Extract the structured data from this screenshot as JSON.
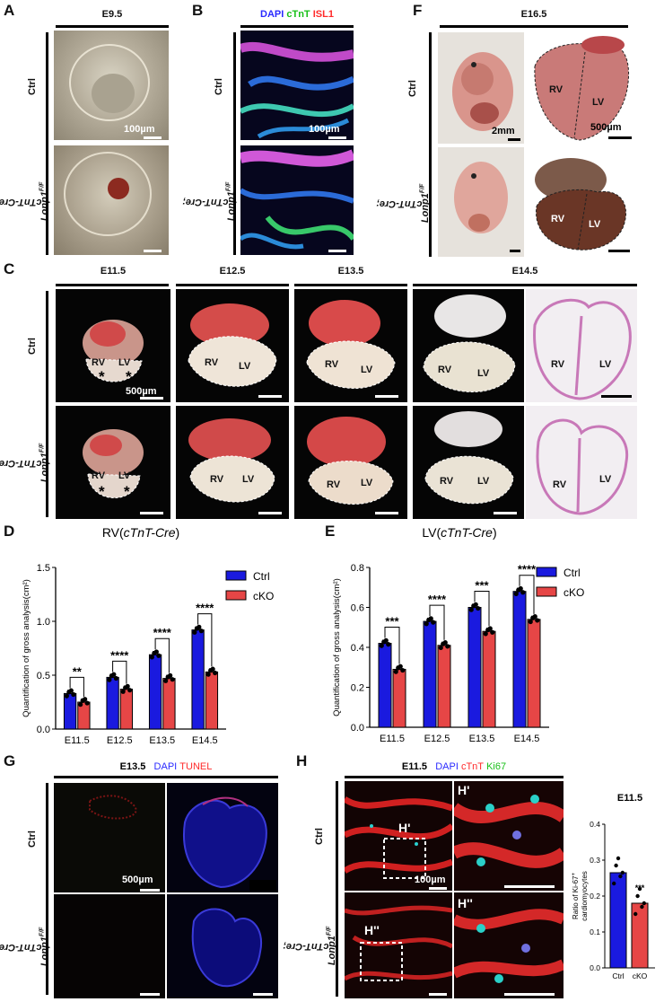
{
  "panels": {
    "A": {
      "letter": "A",
      "stage": "E9.5",
      "scale": "100µm"
    },
    "B": {
      "letter": "B",
      "stains": [
        "DAPI",
        "cTnT",
        "ISL1"
      ],
      "stain_colors": [
        "#2a2aff",
        "#18c018",
        "#ff2a2a"
      ],
      "scale": "100µm"
    },
    "F": {
      "letter": "F",
      "stage": "E16.5",
      "scale_embryo": "2mm",
      "scale_heart": "500µm",
      "rv": "RV",
      "lv": "LV"
    },
    "C": {
      "letter": "C",
      "stages": [
        "E11.5",
        "E12.5",
        "E13.5",
        "E14.5"
      ],
      "scale": "500µm",
      "rv": "RV",
      "lv": "LV",
      "star": "*"
    },
    "D": {
      "letter": "D"
    },
    "E": {
      "letter": "E"
    },
    "G": {
      "letter": "G",
      "stage": "E13.5",
      "stains": [
        "DAPI",
        "TUNEL"
      ],
      "scale": "500µm"
    },
    "H": {
      "letter": "H",
      "stage": "E11.5",
      "stains": [
        "DAPI",
        "cTnT",
        "Ki67"
      ],
      "scale": "100µm",
      "inset1": "H'",
      "inset2": "H''"
    }
  },
  "rows": {
    "ctrl": "Ctrl",
    "mut_line1": "cTnT-Cre;",
    "mut_line2_base": "Lonp1",
    "mut_sup": "F/F"
  },
  "legend": {
    "ctrl": "Ctrl",
    "cko": "cKO"
  },
  "colors": {
    "ctrl": "#1a1adf",
    "cko": "#e64646"
  },
  "chart_data": [
    {
      "type": "bar",
      "title_base": "RV(",
      "title_italic": "cTnT-Cre",
      "title_end": ")",
      "ylabel": "Quantification of gross analysis(cm²)",
      "categories": [
        "E11.5",
        "E12.5",
        "E13.5",
        "E14.5"
      ],
      "ylim": [
        0,
        1.5
      ],
      "yticks": [
        "0.0",
        "0.5",
        "1.0",
        "1.5"
      ],
      "series": [
        {
          "name": "Ctrl",
          "values": [
            0.33,
            0.48,
            0.69,
            0.92
          ]
        },
        {
          "name": "cKO",
          "values": [
            0.25,
            0.37,
            0.47,
            0.53
          ]
        }
      ],
      "significance": [
        "**",
        "****",
        "****",
        "****"
      ]
    },
    {
      "type": "bar",
      "title_base": "LV(",
      "title_italic": "cTnT-Cre",
      "title_end": ")",
      "ylabel": "Quantification of gross analysis(cm²)",
      "categories": [
        "E11.5",
        "E12.5",
        "E13.5",
        "E14.5"
      ],
      "ylim": [
        0,
        0.8
      ],
      "yticks": [
        "0.0",
        "0.2",
        "0.4",
        "0.6",
        "0.8"
      ],
      "series": [
        {
          "name": "Ctrl",
          "values": [
            0.42,
            0.53,
            0.6,
            0.68
          ]
        },
        {
          "name": "cKO",
          "values": [
            0.29,
            0.41,
            0.48,
            0.54
          ]
        }
      ],
      "significance": [
        "***",
        "****",
        "***",
        "****"
      ]
    },
    {
      "type": "bar",
      "title": "E11.5",
      "ylabel_line1": "Ratio of Ki-67",
      "ylabel_sup": "+",
      "ylabel_line2": "cardiomyocytes",
      "categories": [
        "Ctrl",
        "cKO"
      ],
      "ylim": [
        0,
        0.4
      ],
      "yticks": [
        "0.0",
        "0.1",
        "0.2",
        "0.3",
        "0.4"
      ],
      "values": [
        0.265,
        0.18
      ],
      "significance": "***"
    }
  ]
}
